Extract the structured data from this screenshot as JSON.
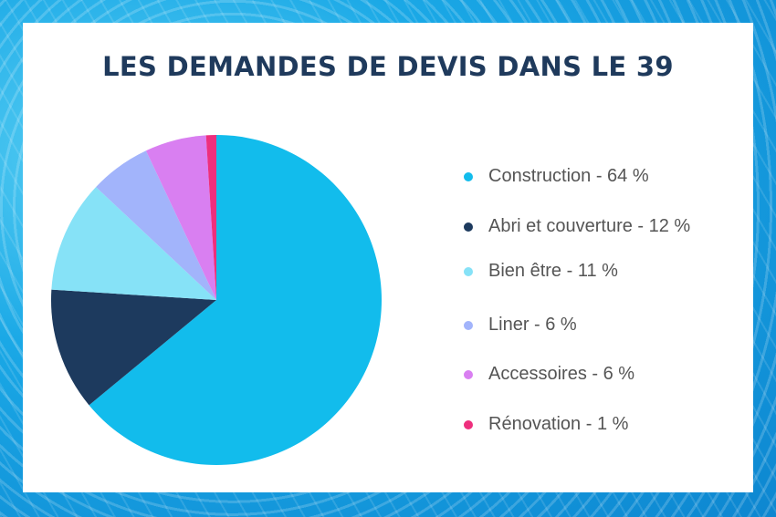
{
  "chart_data": {
    "type": "pie",
    "title": "LES DEMANDES DE DEVIS DANS LE 39",
    "slices": [
      {
        "label": "Construction - 64 %",
        "name": "Construction",
        "value": 64,
        "color": "#12bcec"
      },
      {
        "label": "Abri et couverture - 12 %",
        "name": "Abri et couverture",
        "value": 12,
        "color": "#1d3a5e"
      },
      {
        "label": "Bien être - 11 %",
        "name": "Bien être",
        "value": 11,
        "color": "#86e2f7"
      },
      {
        "label": "Liner - 6 %",
        "name": "Liner",
        "value": 6,
        "color": "#a2b4fb"
      },
      {
        "label": "Accessoires - 6 %",
        "name": "Accessoires",
        "value": 6,
        "color": "#d97ff1"
      },
      {
        "label": "Rénovation - 1 %",
        "name": "Rénovation",
        "value": 1,
        "color": "#ee2f7d"
      }
    ],
    "legend_position": "right"
  }
}
